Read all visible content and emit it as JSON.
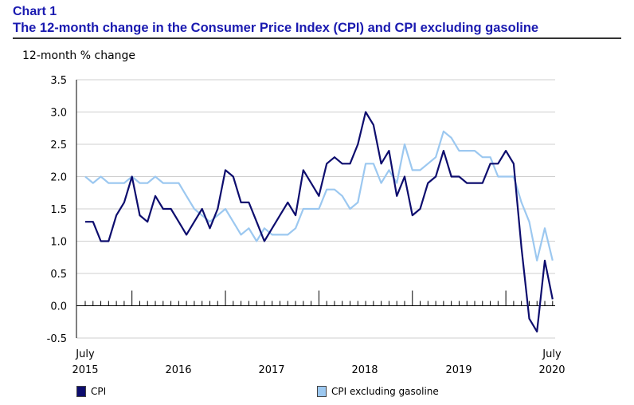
{
  "header": {
    "label": "Chart 1",
    "title": "The 12-month change in the Consumer Price Index (CPI) and CPI excluding gasoline"
  },
  "colors": {
    "cpi": "#0d0d6e",
    "cpi_ex_gas": "#9cc8f0"
  },
  "chart_data": {
    "type": "line",
    "title": "The 12-month change in the Consumer Price Index (CPI) and CPI excluding gasoline",
    "ylabel": "12-month % change",
    "xlabel": "",
    "ylim": [
      -0.5,
      3.5
    ],
    "yticks": [
      "3.5",
      "3.0",
      "2.5",
      "2.0",
      "1.5",
      "1.0",
      "0.5",
      "0.0",
      "-0.5"
    ],
    "x_start": "July 2015",
    "x_end": "July 2020",
    "x_labels": [
      {
        "top": "July",
        "bottom": "2015"
      },
      {
        "top": "",
        "bottom": "2016"
      },
      {
        "top": "",
        "bottom": "2017"
      },
      {
        "top": "",
        "bottom": "2018"
      },
      {
        "top": "",
        "bottom": "2019"
      },
      {
        "top": "July",
        "bottom": "2020"
      }
    ],
    "grid": true,
    "legend": "bottom",
    "series": [
      {
        "name": "CPI",
        "values": [
          1.3,
          1.3,
          1.0,
          1.0,
          1.4,
          1.6,
          2.0,
          1.4,
          1.3,
          1.7,
          1.5,
          1.5,
          1.3,
          1.1,
          1.3,
          1.5,
          1.2,
          1.5,
          2.1,
          2.0,
          1.6,
          1.6,
          1.3,
          1.0,
          1.2,
          1.4,
          1.6,
          1.4,
          2.1,
          1.9,
          1.7,
          2.2,
          2.3,
          2.2,
          2.2,
          2.5,
          3.0,
          2.8,
          2.2,
          2.4,
          1.7,
          2.0,
          1.4,
          1.5,
          1.9,
          2.0,
          2.4,
          2.0,
          2.0,
          1.9,
          1.9,
          1.9,
          2.2,
          2.2,
          2.4,
          2.2,
          0.9,
          -0.2,
          -0.4,
          0.7,
          0.1
        ]
      },
      {
        "name": "CPI excluding gasoline",
        "values": [
          2.0,
          1.9,
          2.0,
          1.9,
          1.9,
          1.9,
          2.0,
          1.9,
          1.9,
          2.0,
          1.9,
          1.9,
          1.9,
          1.7,
          1.5,
          1.4,
          1.3,
          1.4,
          1.5,
          1.3,
          1.1,
          1.2,
          1.0,
          1.2,
          1.1,
          1.1,
          1.1,
          1.2,
          1.5,
          1.5,
          1.5,
          1.8,
          1.8,
          1.7,
          1.5,
          1.6,
          2.2,
          2.2,
          1.9,
          2.1,
          1.9,
          2.5,
          2.1,
          2.1,
          2.2,
          2.3,
          2.7,
          2.6,
          2.4,
          2.4,
          2.4,
          2.3,
          2.3,
          2.0,
          2.0,
          2.0,
          1.6,
          1.3,
          0.7,
          1.2,
          0.7
        ]
      }
    ]
  }
}
